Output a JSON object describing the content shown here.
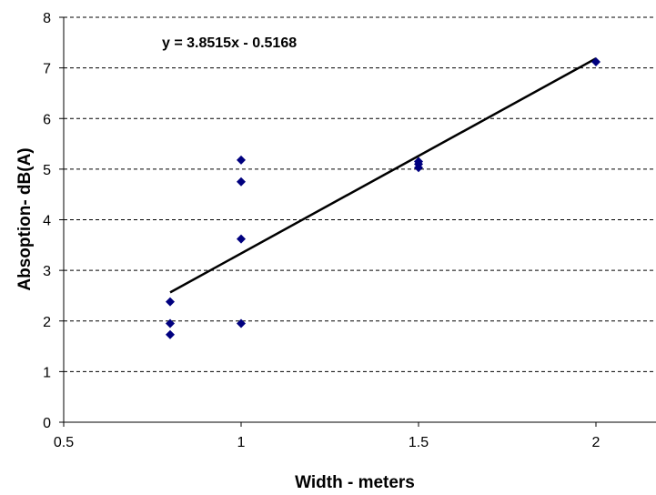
{
  "chart_data": {
    "type": "scatter",
    "xlabel": "Width - meters",
    "ylabel": "Absoption- dB(A)",
    "xlim": [
      0.5,
      2.2
    ],
    "ylim": [
      0,
      8
    ],
    "xticks": [
      0.5,
      1,
      1.5,
      2
    ],
    "xtick_labels": [
      "0.5",
      "1",
      "1.5",
      "2"
    ],
    "yticks": [
      0,
      1,
      2,
      3,
      4,
      5,
      6,
      7,
      8
    ],
    "ytick_labels": [
      "0",
      "1",
      "2",
      "3",
      "4",
      "5",
      "6",
      "7",
      "8"
    ],
    "grid": "horizontal dashed",
    "points": [
      {
        "x": 0.8,
        "y": 1.73
      },
      {
        "x": 0.8,
        "y": 1.95
      },
      {
        "x": 0.8,
        "y": 2.38
      },
      {
        "x": 1.0,
        "y": 1.95
      },
      {
        "x": 1.0,
        "y": 3.62
      },
      {
        "x": 1.0,
        "y": 4.75
      },
      {
        "x": 1.0,
        "y": 5.18
      },
      {
        "x": 1.5,
        "y": 5.03
      },
      {
        "x": 1.5,
        "y": 5.1
      },
      {
        "x": 1.5,
        "y": 5.15
      },
      {
        "x": 2.0,
        "y": 7.12
      }
    ],
    "trendline": {
      "equation": "y = 3.8515x - 0.5168",
      "slope": 3.8515,
      "intercept": -0.5168,
      "x_range": [
        0.8,
        2.0
      ]
    },
    "colors": {
      "marker": "#00007f",
      "trendline": "#000000",
      "grid": "#000000"
    }
  }
}
